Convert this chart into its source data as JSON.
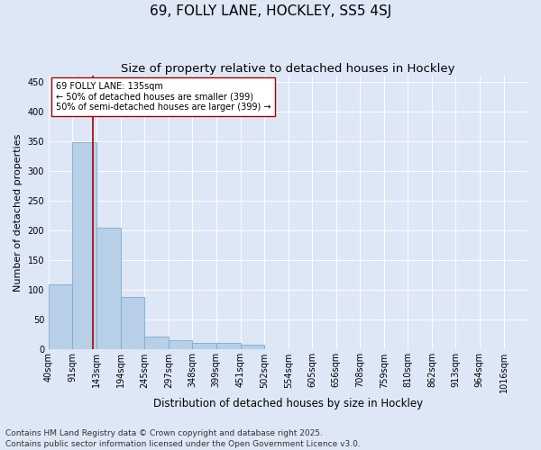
{
  "title1": "69, FOLLY LANE, HOCKLEY, SS5 4SJ",
  "title2": "Size of property relative to detached houses in Hockley",
  "xlabel": "Distribution of detached houses by size in Hockley",
  "ylabel": "Number of detached properties",
  "bar_edges": [
    40,
    91,
    143,
    194,
    245,
    297,
    348,
    399,
    451,
    502,
    554,
    605,
    656,
    708,
    759,
    810,
    862,
    913,
    964,
    1016,
    1067
  ],
  "bar_values": [
    110,
    348,
    204,
    88,
    22,
    15,
    11,
    11,
    8,
    0,
    0,
    0,
    0,
    0,
    0,
    0,
    0,
    0,
    0,
    0
  ],
  "bar_color": "#b8cfe8",
  "bar_edgecolor": "#7aaad4",
  "vline_x": 135,
  "vline_color": "#aa0000",
  "annotation_text": "69 FOLLY LANE: 135sqm\n← 50% of detached houses are smaller (399)\n50% of semi-detached houses are larger (399) →",
  "annotation_box_color": "#ffffff",
  "annotation_box_edgecolor": "#aa0000",
  "ylim": [
    0,
    460
  ],
  "yticks": [
    0,
    50,
    100,
    150,
    200,
    250,
    300,
    350,
    400,
    450
  ],
  "bg_color": "#dde7f5",
  "grid_color": "#ffffff",
  "footer_text": "Contains HM Land Registry data © Crown copyright and database right 2025.\nContains public sector information licensed under the Open Government Licence v3.0.",
  "title1_fontsize": 11,
  "title2_fontsize": 9.5,
  "xlabel_fontsize": 8.5,
  "ylabel_fontsize": 8,
  "tick_fontsize": 7,
  "annotation_fontsize": 7,
  "footer_fontsize": 6.5
}
